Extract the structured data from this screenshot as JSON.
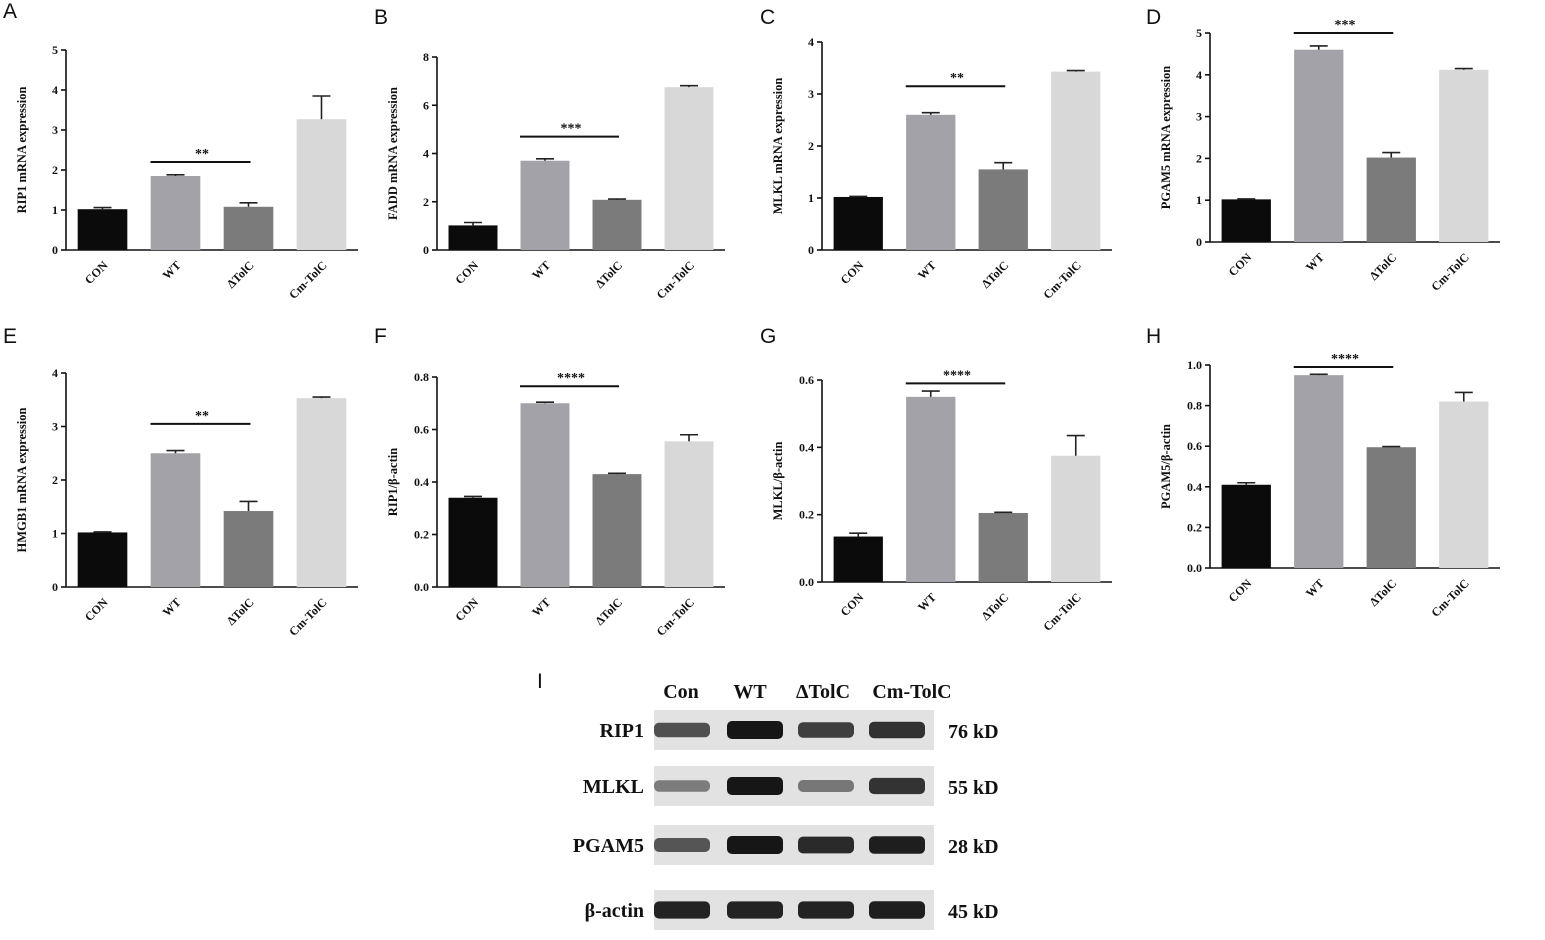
{
  "chart_data": [
    {
      "panel": "A",
      "type": "bar",
      "categories": [
        "CON",
        "WT",
        "ΔTolC",
        "Cm-TolC"
      ],
      "values": [
        1.02,
        1.85,
        1.08,
        3.27
      ],
      "errors": [
        0.04,
        0.03,
        0.1,
        0.58
      ],
      "ylabel": "RIP1 mRNA expression",
      "ylim": [
        0,
        5
      ],
      "yticks": [
        0,
        1,
        2,
        3,
        4,
        5
      ],
      "ytick_labels": [
        "0",
        "1",
        "2",
        "3",
        "4",
        "5"
      ],
      "significance": {
        "from": 1,
        "to": 2,
        "label": "**",
        "level": 2.2
      }
    },
    {
      "panel": "B",
      "type": "bar",
      "categories": [
        "CON",
        "WT",
        "ΔTolC",
        "Cm-TolC"
      ],
      "values": [
        1.02,
        3.7,
        2.08,
        6.75
      ],
      "errors": [
        0.12,
        0.08,
        0.03,
        0.06
      ],
      "ylabel": "FADD mRNA expression",
      "ylim": [
        0,
        8
      ],
      "yticks": [
        0,
        2,
        4,
        6,
        8
      ],
      "ytick_labels": [
        "0",
        "2",
        "4",
        "6",
        "8"
      ],
      "significance": {
        "from": 1,
        "to": 2,
        "label": "***",
        "level": 4.7
      }
    },
    {
      "panel": "C",
      "type": "bar",
      "categories": [
        "CON",
        "WT",
        "ΔTolC",
        "Cm-TolC"
      ],
      "values": [
        1.02,
        2.6,
        1.55,
        3.43
      ],
      "errors": [
        0.01,
        0.04,
        0.13,
        0.02
      ],
      "ylabel": "MLKL mRNA expression",
      "ylim": [
        0,
        4
      ],
      "yticks": [
        0,
        1,
        2,
        3,
        4
      ],
      "ytick_labels": [
        "0",
        "1",
        "2",
        "3",
        "4"
      ],
      "significance": {
        "from": 1,
        "to": 2,
        "label": "**",
        "level": 3.15
      }
    },
    {
      "panel": "D",
      "type": "bar",
      "categories": [
        "CON",
        "WT",
        "ΔTolC",
        "Cm-TolC"
      ],
      "values": [
        1.02,
        4.6,
        2.02,
        4.12
      ],
      "errors": [
        0.01,
        0.09,
        0.12,
        0.03
      ],
      "ylabel": "PGAM5 mRNA expression",
      "ylim": [
        0,
        5
      ],
      "yticks": [
        0,
        1,
        2,
        3,
        4,
        5
      ],
      "ytick_labels": [
        "0",
        "1",
        "2",
        "3",
        "4",
        "5"
      ],
      "significance": {
        "from": 1,
        "to": 2,
        "label": "***",
        "level": 5.0
      }
    },
    {
      "panel": "E",
      "type": "bar",
      "categories": [
        "CON",
        "WT",
        "ΔTolC",
        "Cm-TolC"
      ],
      "values": [
        1.02,
        2.5,
        1.42,
        3.53
      ],
      "errors": [
        0.01,
        0.05,
        0.18,
        0.02
      ],
      "ylabel": "HMGB1 mRNA expression",
      "ylim": [
        0,
        4
      ],
      "yticks": [
        0,
        1,
        2,
        3,
        4
      ],
      "ytick_labels": [
        "0",
        "1",
        "2",
        "3",
        "4"
      ],
      "significance": {
        "from": 1,
        "to": 2,
        "label": "**",
        "level": 3.05
      }
    },
    {
      "panel": "F",
      "type": "bar",
      "categories": [
        "CON",
        "WT",
        "ΔTolC",
        "Cm-TolC"
      ],
      "values": [
        0.34,
        0.7,
        0.43,
        0.555
      ],
      "errors": [
        0.005,
        0.004,
        0.003,
        0.025
      ],
      "ylabel": "RIP1/β-actin",
      "ylim": [
        0,
        0.8
      ],
      "yticks": [
        0,
        0.2,
        0.4,
        0.6,
        0.8
      ],
      "ytick_labels": [
        "0.0",
        "0.2",
        "0.4",
        "0.6",
        "0.8"
      ],
      "significance": {
        "from": 1,
        "to": 2,
        "label": "****",
        "level": 0.765
      }
    },
    {
      "panel": "G",
      "type": "bar",
      "categories": [
        "CON",
        "WT",
        "ΔTolC",
        "Cm-TolC"
      ],
      "values": [
        0.135,
        0.55,
        0.205,
        0.375
      ],
      "errors": [
        0.01,
        0.017,
        0.002,
        0.06
      ],
      "ylabel": "MLKL/β-actin",
      "ylim": [
        0,
        0.6
      ],
      "yticks": [
        0,
        0.2,
        0.4,
        0.6
      ],
      "ytick_labels": [
        "0.0",
        "0.2",
        "0.4",
        "0.6"
      ],
      "significance": {
        "from": 1,
        "to": 2,
        "label": "****",
        "level": 0.59
      }
    },
    {
      "panel": "H",
      "type": "bar",
      "categories": [
        "CON",
        "WT",
        "ΔTolC",
        "Cm-TolC"
      ],
      "values": [
        0.41,
        0.95,
        0.595,
        0.82
      ],
      "errors": [
        0.01,
        0.004,
        0.003,
        0.045
      ],
      "ylabel": "PGAM5/β-actin",
      "ylim": [
        0,
        1.0
      ],
      "yticks": [
        0,
        0.2,
        0.4,
        0.6,
        0.8,
        1.0
      ],
      "ytick_labels": [
        "0.0",
        "0.2",
        "0.4",
        "0.6",
        "0.8",
        "1.0"
      ],
      "significance": {
        "from": 1,
        "to": 2,
        "label": "****",
        "level": 0.99
      }
    }
  ],
  "colors": {
    "bars": [
      "#0b0b0b",
      "#a2a2a8",
      "#7b7b7b",
      "#d8d8d8"
    ],
    "axis": "#111111",
    "blot_background": "#e2e2e2",
    "blot_band": "#161616"
  },
  "western_blot": {
    "panel": "I",
    "lanes": [
      "Con",
      "WT",
      "ΔTolC",
      "Cm-TolC"
    ],
    "rows": [
      {
        "protein": "RIP1",
        "size": "76 kD",
        "intensity": [
          0.6,
          1.0,
          0.72,
          0.82
        ]
      },
      {
        "protein": "MLKL",
        "size": "55 kD",
        "intensity": [
          0.28,
          1.0,
          0.32,
          0.8
        ]
      },
      {
        "protein": "PGAM5",
        "size": "28 kD",
        "intensity": [
          0.55,
          1.0,
          0.85,
          0.95
        ]
      },
      {
        "protein": "β-actin",
        "size": "45 kD",
        "intensity": [
          0.92,
          0.92,
          0.92,
          0.94
        ]
      }
    ]
  }
}
